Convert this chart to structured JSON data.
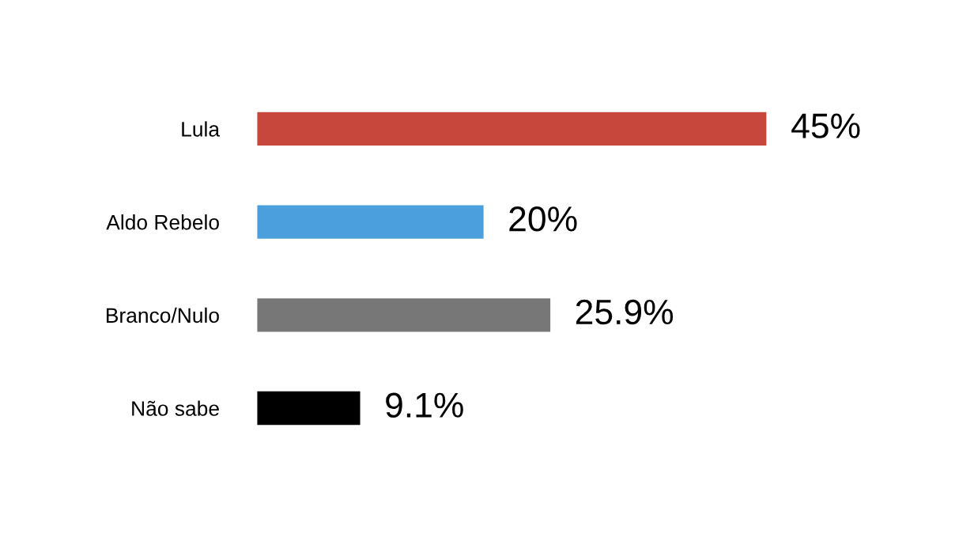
{
  "chart_data": {
    "type": "bar",
    "orientation": "horizontal",
    "categories": [
      "Lula",
      "Aldo Rebelo",
      "Branco/Nulo",
      "Não sabe"
    ],
    "values": [
      45,
      20,
      25.9,
      9.1
    ],
    "colors": [
      "#c8473c",
      "#4a9fdc",
      "#777777",
      "#000000"
    ],
    "value_labels": [
      "45%",
      "20%",
      "25.9%",
      "9.1%"
    ],
    "tick_labels": "y",
    "grid": false
  }
}
